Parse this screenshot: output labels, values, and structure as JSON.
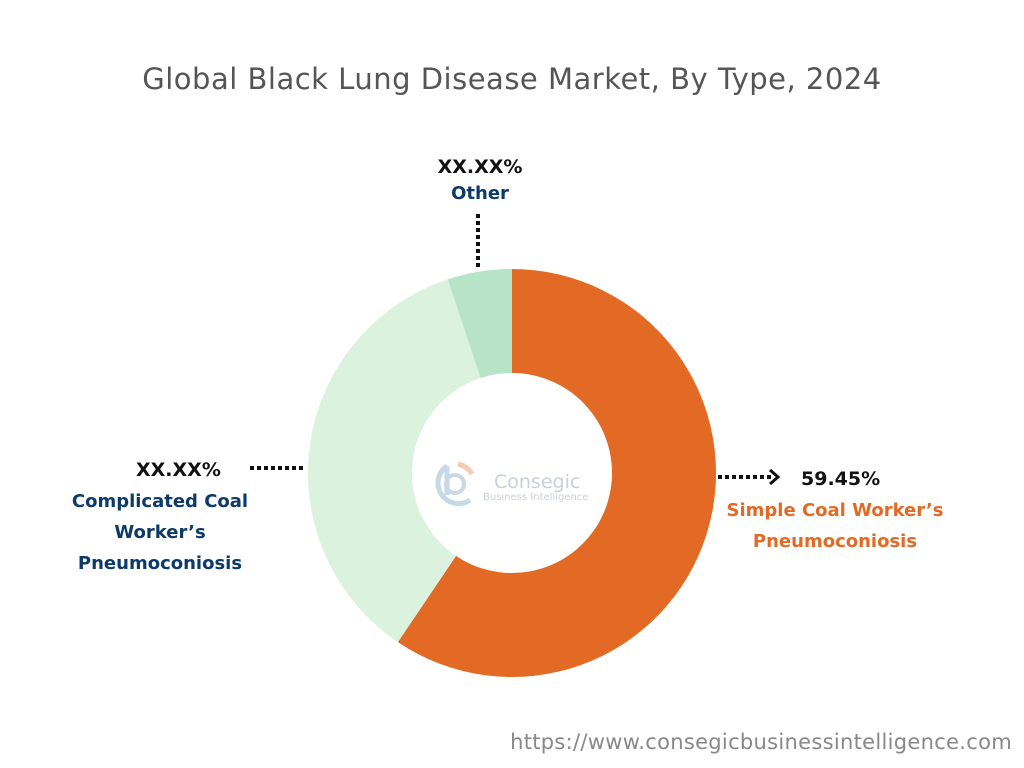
{
  "chart_data": {
    "type": "pie",
    "subtype": "donut",
    "title": "Global Black Lung Disease Market, By Type, 2024",
    "slices": [
      {
        "name": "Simple Coal Worker’s Pneumoconiosis",
        "value": 59.45,
        "label": "59.45%",
        "color": "#E26A25"
      },
      {
        "name": "Complicated Coal Worker’s Pneumoconiosis",
        "value": 35.45,
        "label": "XX.XX%",
        "color": "#DBF2DE"
      },
      {
        "name": "Other",
        "value": 5.1,
        "label": "XX.XX%",
        "color": "#B7E4C7"
      }
    ],
    "start_angle_deg": 0,
    "direction": "clockwise"
  },
  "label_colors": {
    "orange": "#E26A25",
    "navy": "#0D3A66"
  },
  "logo": {
    "name": "Consegic",
    "tagline": "Business Intelligence"
  },
  "footer_url": "https://www.consegicbusinessintelligence.com"
}
